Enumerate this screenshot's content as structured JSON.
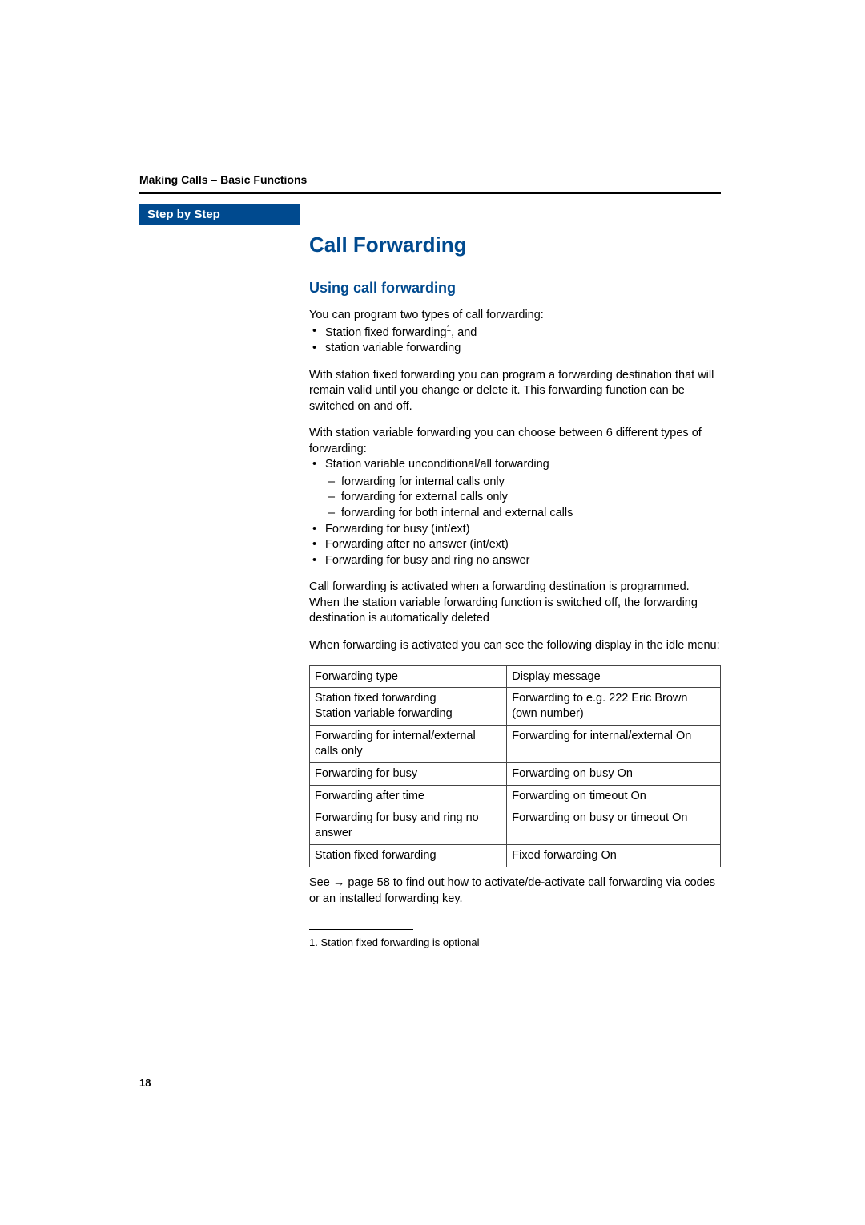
{
  "breadcrumb": "Making Calls – Basic Functions",
  "sidebar": {
    "header": "Step by Step"
  },
  "title": "Call Forwarding",
  "subtitle": "Using call forwarding",
  "intro": {
    "lead": "You can program two types of call forwarding:",
    "items": [
      {
        "text_before": "Station fixed forwarding",
        "sup": "1",
        "text_after": ", and"
      },
      {
        "text_before": "station variable forwarding",
        "sup": null,
        "text_after": ""
      }
    ]
  },
  "p_fixed": "With station fixed forwarding you can program a forwarding destination that will remain valid until you change or delete it. This forwarding function can be switched on and off.",
  "var_block": {
    "lead": "With station variable forwarding you can choose between 6 different types of forwarding:",
    "first_label": "Station variable unconditional/all forwarding",
    "sub": [
      "forwarding for internal calls only",
      "forwarding for external calls only",
      "forwarding for both internal and external calls"
    ],
    "rest": [
      "Forwarding for busy (int/ext)",
      "Forwarding after no answer (int/ext)",
      "Forwarding for busy and ring no answer"
    ]
  },
  "p_activated": "Call forwarding is activated when a forwarding destination is programmed. When the station variable forwarding function is switched off, the forwarding destination is automatically deleted",
  "p_display": "When forwarding is activated you can see the following display in the idle menu:",
  "table": {
    "header": [
      "Forwarding type",
      "Display message"
    ],
    "rows": [
      [
        "Station fixed forwarding\nStation variable forwarding",
        "Forwarding to e.g. 222 Eric Brown (own number)"
      ],
      [
        "Forwarding for internal/external calls only",
        "Forwarding for internal/external On"
      ],
      [
        "Forwarding for busy",
        "Forwarding on busy On"
      ],
      [
        "Forwarding after time",
        "Forwarding on timeout On"
      ],
      [
        "Forwarding for busy and ring no answer",
        "Forwarding on busy or timeout On"
      ],
      [
        "Station fixed forwarding",
        "Fixed forwarding On"
      ]
    ]
  },
  "see": {
    "before": "See ",
    "arrow": "→",
    "after": " page 58 to find out how to activate/de-activate call forwarding via codes or an installed forwarding key."
  },
  "footnote": "1.  Station fixed forwarding is optional",
  "page_number": "18",
  "colors": {
    "brand": "#004a8f",
    "text": "#000000",
    "background": "#ffffff",
    "table_border": "#444444"
  }
}
